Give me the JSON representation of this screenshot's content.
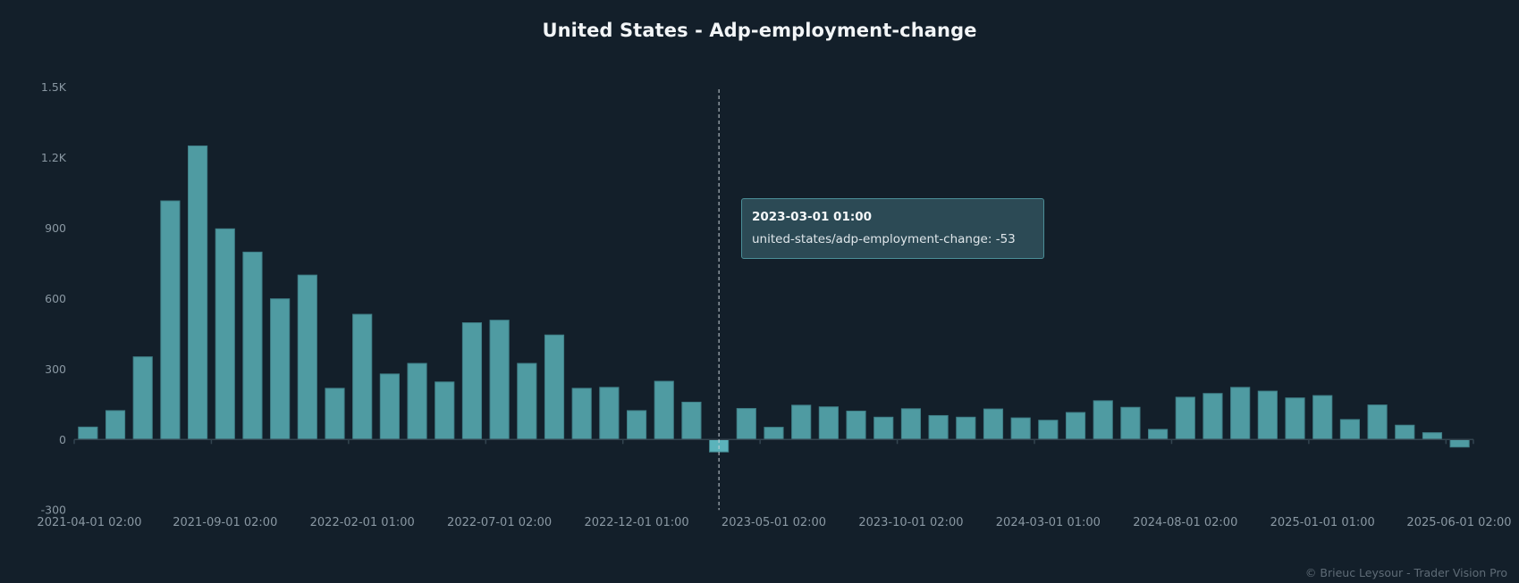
{
  "title": "United States - Adp-employment-change",
  "footer": "© Brieuc Leysour - Trader Vision Pro",
  "colors": {
    "background": "#131f2a",
    "bar_fill": "#4f9ba2",
    "bar_stroke": "#3f7f87",
    "bar_highlight": "#5bb3bb",
    "axis": "#33444f",
    "crosshair": "#c8d0d6"
  },
  "tooltip": {
    "title": "2023-03-01 01:00",
    "series_label": "united-states/adp-employment-change",
    "value": "-53"
  },
  "chart_data": {
    "type": "bar",
    "title": "United States - Adp-employment-change",
    "xlabel": "",
    "ylabel": "",
    "ylim": [
      -300,
      1500
    ],
    "grid": false,
    "legend": "none",
    "y_ticks": [
      -300,
      0,
      300,
      600,
      900,
      1200,
      1500
    ],
    "y_tick_labels": [
      "-300",
      "0",
      "300",
      "600",
      "900",
      "1.2K",
      "1.5K"
    ],
    "x_tick_labels": [
      {
        "index": 0,
        "label": "2021-04-01 02:00"
      },
      {
        "index": 5,
        "label": "2021-09-01 02:00"
      },
      {
        "index": 10,
        "label": "2022-02-01 01:00"
      },
      {
        "index": 15,
        "label": "2022-07-01 02:00"
      },
      {
        "index": 20,
        "label": "2022-12-01 01:00"
      },
      {
        "index": 25,
        "label": "2023-05-01 02:00"
      },
      {
        "index": 30,
        "label": "2023-10-01 02:00"
      },
      {
        "index": 35,
        "label": "2024-03-01 01:00"
      },
      {
        "index": 40,
        "label": "2024-08-01 02:00"
      },
      {
        "index": 45,
        "label": "2025-01-01 01:00"
      },
      {
        "index": 50,
        "label": "2025-06-01 02:00"
      }
    ],
    "highlighted_index": 23,
    "categories": [
      "2021-04",
      "2021-05",
      "2021-06",
      "2021-07",
      "2021-08",
      "2021-09",
      "2021-10",
      "2021-11",
      "2021-12",
      "2022-01",
      "2022-02",
      "2022-03",
      "2022-04",
      "2022-05",
      "2022-06",
      "2022-07",
      "2022-08",
      "2022-09",
      "2022-10",
      "2022-11",
      "2022-12",
      "2023-01",
      "2023-02",
      "2023-03",
      "2023-04",
      "2023-05",
      "2023-06",
      "2023-07",
      "2023-08",
      "2023-09",
      "2023-10",
      "2023-11",
      "2023-12",
      "2024-01",
      "2024-02",
      "2024-03",
      "2024-04",
      "2024-05",
      "2024-06",
      "2024-07",
      "2024-08",
      "2024-09",
      "2024-10",
      "2024-11",
      "2024-12",
      "2025-01",
      "2025-02",
      "2025-03",
      "2025-04",
      "2025-05",
      "2025-06"
    ],
    "series": [
      {
        "name": "united-states/adp-employment-change",
        "values": [
          53,
          123,
          352,
          1016,
          1250,
          897,
          798,
          599,
          700,
          218,
          533,
          279,
          324,
          245,
          497,
          508,
          324,
          445,
          218,
          222,
          123,
          248,
          159,
          -53,
          132,
          52,
          146,
          139,
          121,
          95,
          131,
          102,
          95,
          130,
          92,
          82,
          115,
          165,
          137,
          43,
          180,
          196,
          222,
          206,
          177,
          187,
          85,
          147,
          61,
          29,
          -32
        ]
      }
    ]
  }
}
